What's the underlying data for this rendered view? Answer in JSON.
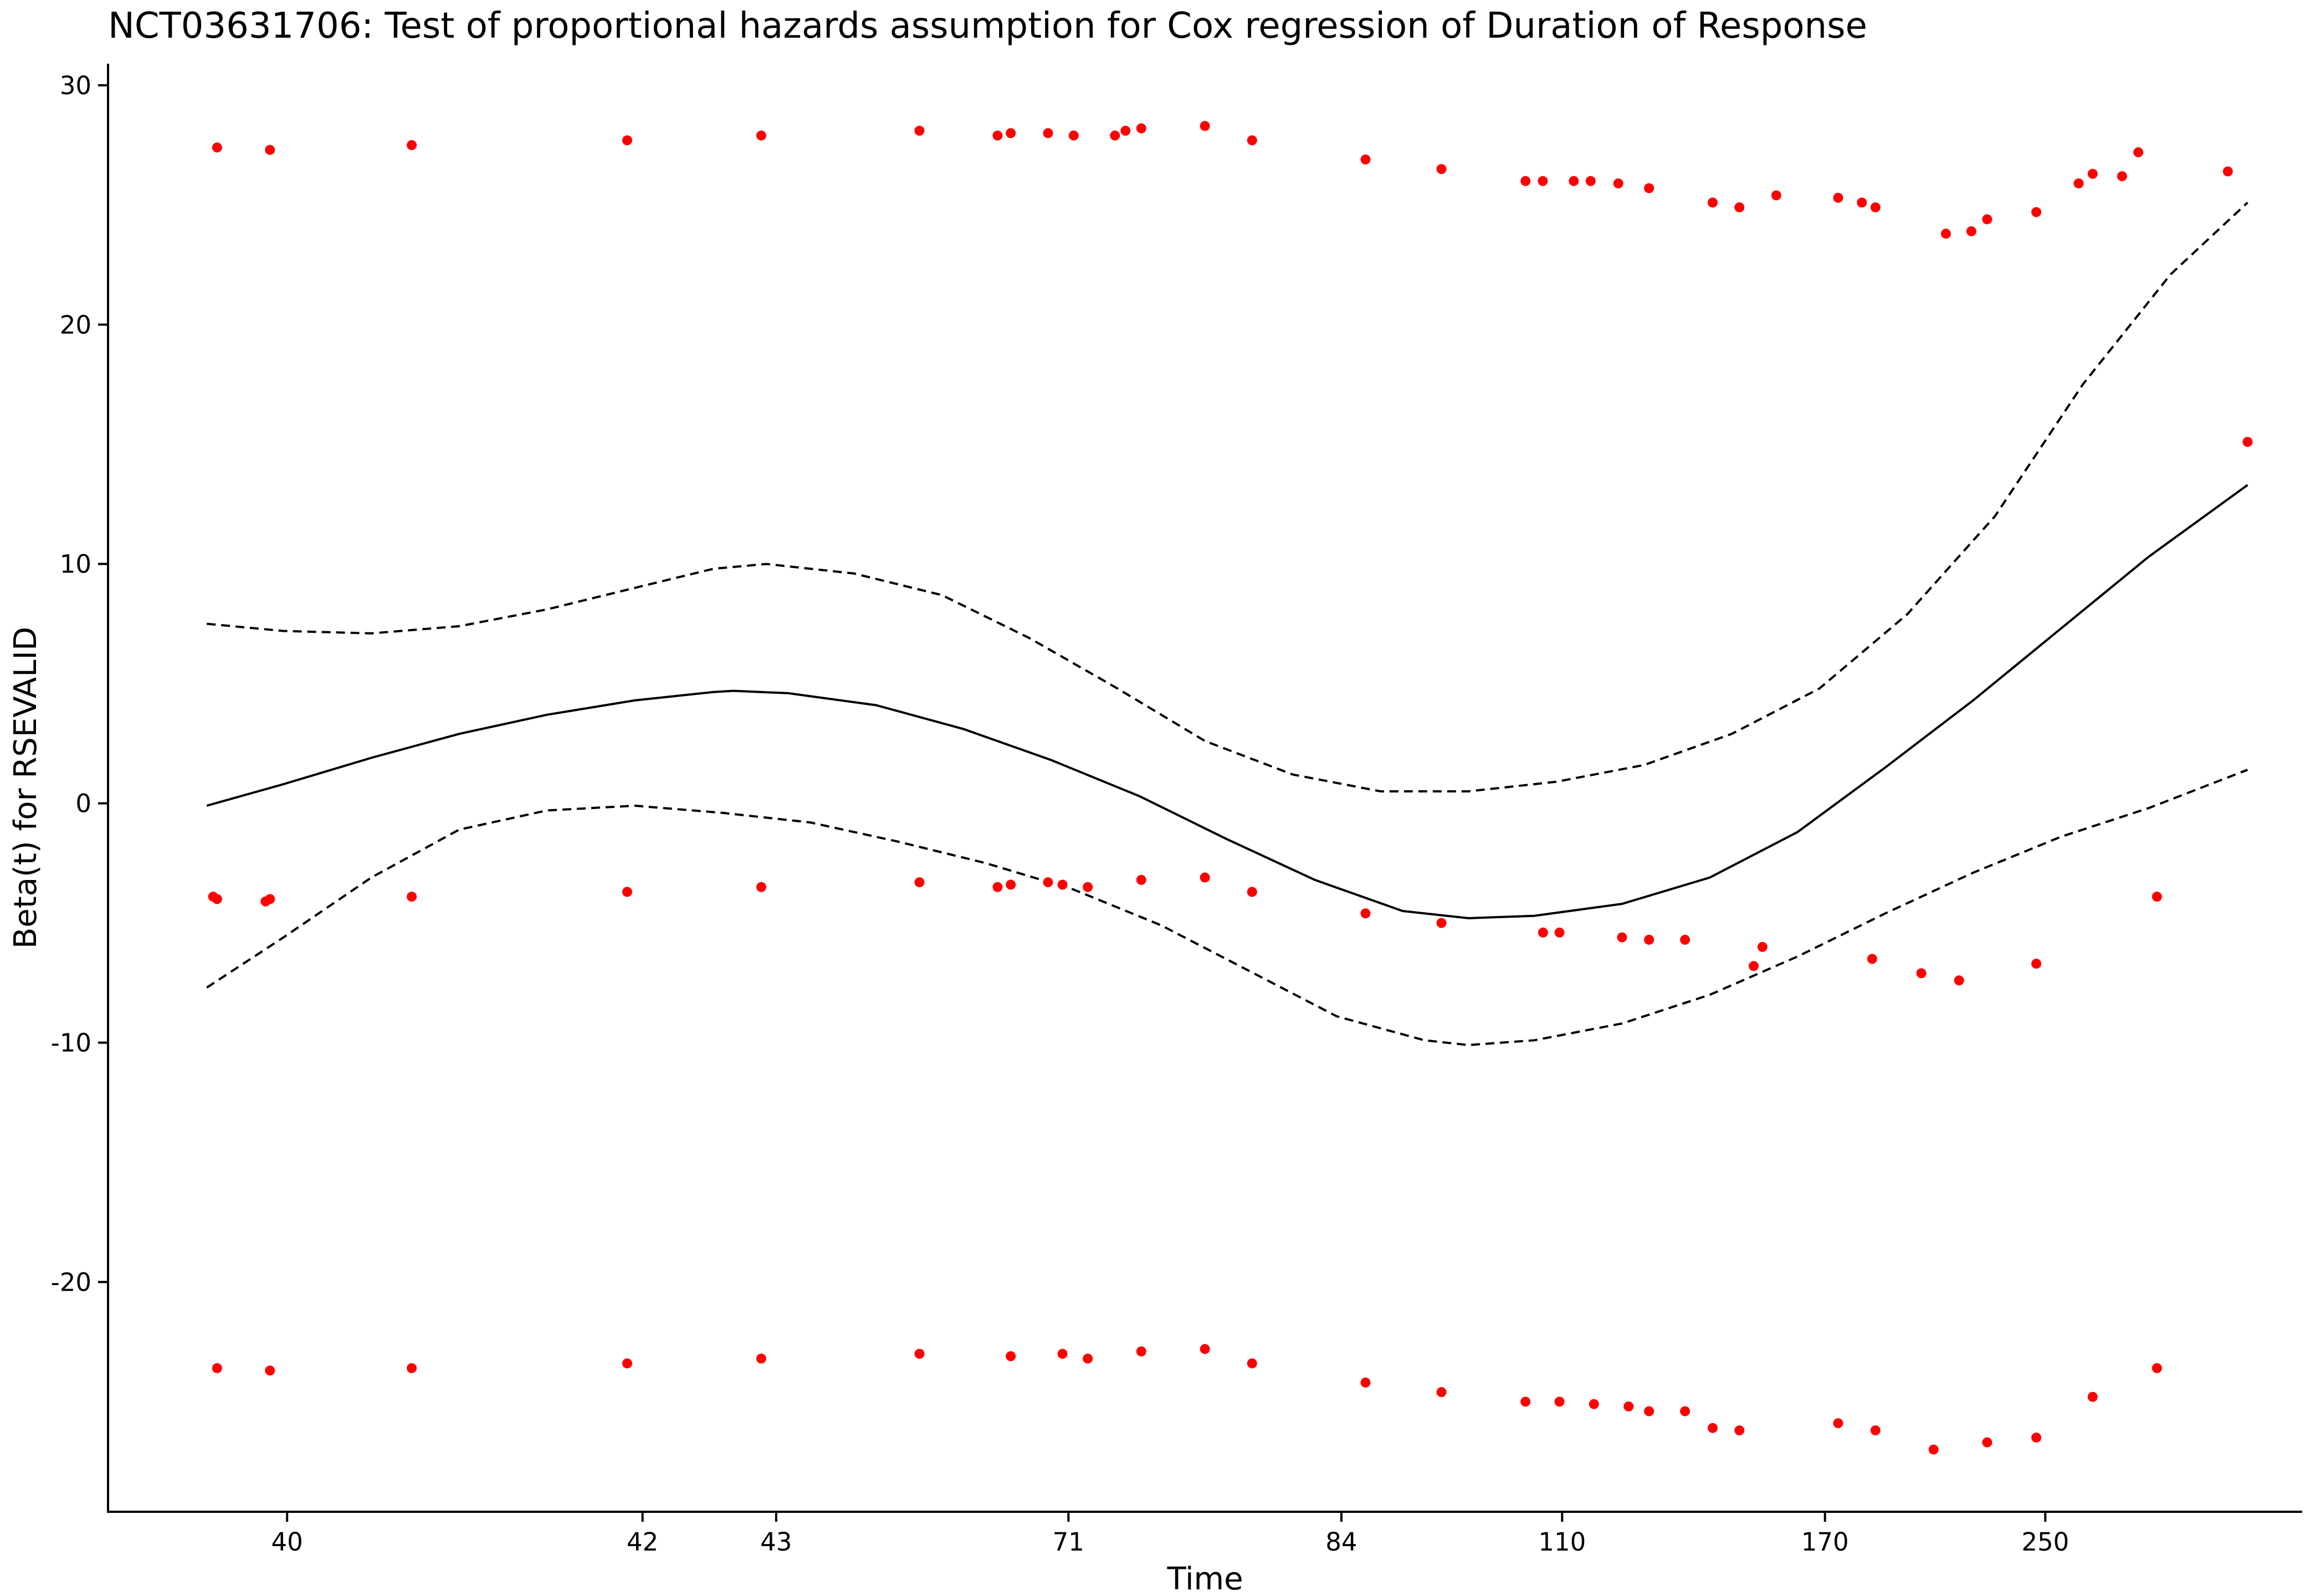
{
  "chart_data": {
    "type": "scatter",
    "title": "NCT03631706: Test of proportional hazards assumption for Cox regression of Duration of Response",
    "xlabel": "Time",
    "ylabel": "Beta(t) for RSEVALID",
    "x_scale": "transformed (rank-based time)",
    "x_ticks": [
      {
        "label": "40",
        "pos": 0.0816
      },
      {
        "label": "42",
        "pos": 0.2436
      },
      {
        "label": "43",
        "pos": 0.3045
      },
      {
        "label": "71",
        "pos": 0.4377
      },
      {
        "label": "84",
        "pos": 0.5621
      },
      {
        "label": "110",
        "pos": 0.6627
      },
      {
        "label": "170",
        "pos": 0.7825
      },
      {
        "label": "250",
        "pos": 0.8829
      }
    ],
    "xlim_pos": [
      0.0,
      1.0
    ],
    "ylim": [
      -29.6,
      30.9
    ],
    "y_ticks": [
      -20,
      -10,
      0,
      10,
      20,
      30
    ],
    "grid": false,
    "colors": {
      "points": "#ff0000",
      "lines": "#000000"
    },
    "series": [
      {
        "style": "points",
        "color": "#ff0000",
        "points": [
          [
            0.0497,
            27.4
          ],
          [
            0.0738,
            27.3
          ],
          [
            0.1384,
            27.5
          ],
          [
            0.2366,
            27.7
          ],
          [
            0.2977,
            27.9
          ],
          [
            0.3698,
            28.1
          ],
          [
            0.4054,
            27.9
          ],
          [
            0.4114,
            28.0
          ],
          [
            0.4284,
            28.0
          ],
          [
            0.4401,
            27.9
          ],
          [
            0.4589,
            27.9
          ],
          [
            0.4637,
            28.1
          ],
          [
            0.4709,
            28.2
          ],
          [
            0.4999,
            28.3
          ],
          [
            0.5214,
            27.7
          ],
          [
            0.5731,
            26.9
          ],
          [
            0.6077,
            26.5
          ],
          [
            0.646,
            26.0
          ],
          [
            0.6539,
            26.0
          ],
          [
            0.668,
            26.0
          ],
          [
            0.6757,
            26.0
          ],
          [
            0.6883,
            25.9
          ],
          [
            0.7023,
            25.7
          ],
          [
            0.7313,
            25.1
          ],
          [
            0.7435,
            24.9
          ],
          [
            0.7603,
            25.4
          ],
          [
            0.7885,
            25.3
          ],
          [
            0.7993,
            25.1
          ],
          [
            0.8055,
            24.9
          ],
          [
            0.8376,
            23.8
          ],
          [
            0.8492,
            23.9
          ],
          [
            0.8564,
            24.4
          ],
          [
            0.8788,
            24.7
          ],
          [
            0.8981,
            25.9
          ],
          [
            0.9045,
            26.3
          ],
          [
            0.9179,
            26.2
          ],
          [
            0.9253,
            27.2
          ],
          [
            0.9661,
            26.4
          ],
          [
            0.9751,
            15.1
          ],
          [
            0.0479,
            -3.9
          ],
          [
            0.0497,
            -4.0
          ],
          [
            0.0718,
            -4.1
          ],
          [
            0.0738,
            -4.0
          ],
          [
            0.1384,
            -3.9
          ],
          [
            0.2366,
            -3.7
          ],
          [
            0.2977,
            -3.5
          ],
          [
            0.3698,
            -3.3
          ],
          [
            0.4054,
            -3.5
          ],
          [
            0.4114,
            -3.4
          ],
          [
            0.4284,
            -3.3
          ],
          [
            0.435,
            -3.4
          ],
          [
            0.4465,
            -3.5
          ],
          [
            0.4709,
            -3.2
          ],
          [
            0.4999,
            -3.1
          ],
          [
            0.5214,
            -3.7
          ],
          [
            0.5731,
            -4.6
          ],
          [
            0.6077,
            -5.0
          ],
          [
            0.654,
            -5.4
          ],
          [
            0.6615,
            -5.4
          ],
          [
            0.69,
            -5.6
          ],
          [
            0.7023,
            -5.7
          ],
          [
            0.7187,
            -5.7
          ],
          [
            0.75,
            -6.8
          ],
          [
            0.754,
            -6.0
          ],
          [
            0.804,
            -6.5
          ],
          [
            0.8264,
            -7.1
          ],
          [
            0.8436,
            -7.4
          ],
          [
            0.8788,
            -6.7
          ],
          [
            0.9338,
            -3.9
          ],
          [
            0.0497,
            -23.6
          ],
          [
            0.0738,
            -23.7
          ],
          [
            0.1384,
            -23.6
          ],
          [
            0.2366,
            -23.4
          ],
          [
            0.2977,
            -23.2
          ],
          [
            0.3698,
            -23.0
          ],
          [
            0.4114,
            -23.1
          ],
          [
            0.435,
            -23.0
          ],
          [
            0.4465,
            -23.2
          ],
          [
            0.4709,
            -22.9
          ],
          [
            0.4999,
            -22.8
          ],
          [
            0.5214,
            -23.4
          ],
          [
            0.5731,
            -24.2
          ],
          [
            0.6077,
            -24.6
          ],
          [
            0.646,
            -25.0
          ],
          [
            0.6615,
            -25.0
          ],
          [
            0.6772,
            -25.1
          ],
          [
            0.693,
            -25.2
          ],
          [
            0.7023,
            -25.4
          ],
          [
            0.7187,
            -25.4
          ],
          [
            0.7313,
            -26.1
          ],
          [
            0.7435,
            -26.2
          ],
          [
            0.7885,
            -25.9
          ],
          [
            0.8055,
            -26.2
          ],
          [
            0.832,
            -27.0
          ],
          [
            0.8564,
            -26.7
          ],
          [
            0.8788,
            -26.5
          ],
          [
            0.9045,
            -24.8
          ],
          [
            0.9338,
            -23.6
          ]
        ]
      },
      {
        "style": "solid",
        "color": "#000000",
        "points": [
          [
            0.045,
            -0.1
          ],
          [
            0.08,
            0.8
          ],
          [
            0.12,
            1.9
          ],
          [
            0.16,
            2.9
          ],
          [
            0.2,
            3.7
          ],
          [
            0.24,
            4.3
          ],
          [
            0.276,
            4.65
          ],
          [
            0.285,
            4.7
          ],
          [
            0.31,
            4.6
          ],
          [
            0.35,
            4.1
          ],
          [
            0.39,
            3.1
          ],
          [
            0.43,
            1.8
          ],
          [
            0.47,
            0.3
          ],
          [
            0.51,
            -1.5
          ],
          [
            0.55,
            -3.2
          ],
          [
            0.59,
            -4.5
          ],
          [
            0.62,
            -4.8
          ],
          [
            0.65,
            -4.7
          ],
          [
            0.69,
            -4.2
          ],
          [
            0.73,
            -3.1
          ],
          [
            0.77,
            -1.2
          ],
          [
            0.81,
            1.5
          ],
          [
            0.85,
            4.3
          ],
          [
            0.89,
            7.3
          ],
          [
            0.93,
            10.3
          ],
          [
            0.9751,
            13.3
          ]
        ]
      },
      {
        "style": "dashed",
        "color": "#000000",
        "points": [
          [
            0.045,
            7.5
          ],
          [
            0.08,
            7.2
          ],
          [
            0.12,
            7.1
          ],
          [
            0.16,
            7.4
          ],
          [
            0.2,
            8.1
          ],
          [
            0.24,
            9.0
          ],
          [
            0.276,
            9.8
          ],
          [
            0.3,
            10.0
          ],
          [
            0.34,
            9.6
          ],
          [
            0.38,
            8.7
          ],
          [
            0.42,
            6.9
          ],
          [
            0.46,
            4.8
          ],
          [
            0.5,
            2.6
          ],
          [
            0.54,
            1.2
          ],
          [
            0.58,
            0.5
          ],
          [
            0.62,
            0.5
          ],
          [
            0.66,
            0.9
          ],
          [
            0.7,
            1.6
          ],
          [
            0.74,
            2.9
          ],
          [
            0.78,
            4.8
          ],
          [
            0.82,
            7.9
          ],
          [
            0.86,
            12.0
          ],
          [
            0.9,
            17.5
          ],
          [
            0.94,
            22.1
          ],
          [
            0.9751,
            25.1
          ]
        ]
      },
      {
        "style": "dashed",
        "color": "#000000",
        "points": [
          [
            0.045,
            -7.7
          ],
          [
            0.08,
            -5.6
          ],
          [
            0.12,
            -3.1
          ],
          [
            0.16,
            -1.1
          ],
          [
            0.2,
            -0.3
          ],
          [
            0.24,
            -0.1
          ],
          [
            0.28,
            -0.4
          ],
          [
            0.32,
            -0.8
          ],
          [
            0.36,
            -1.6
          ],
          [
            0.4,
            -2.5
          ],
          [
            0.44,
            -3.6
          ],
          [
            0.48,
            -5.1
          ],
          [
            0.52,
            -7.0
          ],
          [
            0.56,
            -8.9
          ],
          [
            0.6,
            -9.9
          ],
          [
            0.62,
            -10.1
          ],
          [
            0.65,
            -9.9
          ],
          [
            0.69,
            -9.2
          ],
          [
            0.73,
            -8.0
          ],
          [
            0.77,
            -6.4
          ],
          [
            0.81,
            -4.6
          ],
          [
            0.85,
            -2.9
          ],
          [
            0.89,
            -1.4
          ],
          [
            0.93,
            -0.2
          ],
          [
            0.9751,
            1.4
          ]
        ]
      }
    ]
  }
}
